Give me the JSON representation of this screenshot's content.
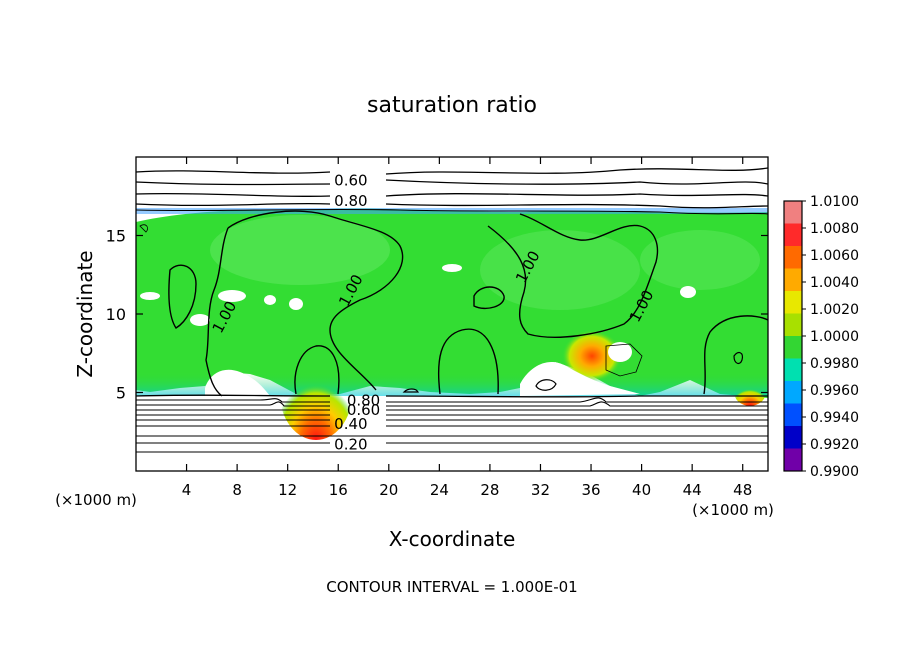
{
  "chart_data": {
    "type": "heatmap",
    "title": "saturation ratio",
    "xlabel": "X-coordinate",
    "ylabel": "Z-coordinate",
    "x_unit_left": "(×1000 m)",
    "x_unit_right": "(×1000 m)",
    "xlim": [
      0,
      50
    ],
    "ylim": [
      0,
      20
    ],
    "x_ticks": [
      4,
      8,
      12,
      16,
      20,
      24,
      28,
      32,
      36,
      40,
      44,
      48
    ],
    "y_ticks": [
      5,
      10,
      15
    ],
    "contour_interval_label": "CONTOUR INTERVAL = 1.000E-01",
    "contour_labels": [
      {
        "text": "0.60",
        "x": 17.0,
        "z": 18.5
      },
      {
        "text": "0.80",
        "x": 17.0,
        "z": 17.2
      },
      {
        "text": "1.00",
        "x": 7.0,
        "z": 9.8
      },
      {
        "text": "1.00",
        "x": 17.0,
        "z": 11.5
      },
      {
        "text": "1.00",
        "x": 31.0,
        "z": 13.0
      },
      {
        "text": "1.00",
        "x": 40.0,
        "z": 10.5
      },
      {
        "text": "0.80",
        "x": 18.0,
        "z": 4.5
      },
      {
        "text": "0.60",
        "x": 18.0,
        "z": 3.9
      },
      {
        "text": "0.40",
        "x": 17.0,
        "z": 3.0
      },
      {
        "text": "0.20",
        "x": 17.0,
        "z": 1.7
      }
    ],
    "colorbar": {
      "labels": [
        "1.0100",
        "1.0080",
        "1.0060",
        "1.0040",
        "1.0020",
        "1.0000",
        "0.9980",
        "0.9960",
        "0.9940",
        "0.9920",
        "0.9900"
      ],
      "colors": [
        "#f08080",
        "#ff2a2a",
        "#ff6a00",
        "#ffaa00",
        "#e8e800",
        "#a8e000",
        "#33d633",
        "#00e0b0",
        "#00a8ff",
        "#0050ff",
        "#0000c8",
        "#7000a8"
      ]
    },
    "field": {
      "background": "#33dd33",
      "saturated_zone_z": [
        5,
        16.8
      ],
      "hot_spots": [
        {
          "x": 14.5,
          "z": 5.0,
          "color": "#ff2a2a"
        },
        {
          "x": 35.5,
          "z": 6.5,
          "color": "#ff6a00"
        },
        {
          "x": 48.5,
          "z": 5.0,
          "color": "#ff2a2a"
        }
      ]
    }
  }
}
